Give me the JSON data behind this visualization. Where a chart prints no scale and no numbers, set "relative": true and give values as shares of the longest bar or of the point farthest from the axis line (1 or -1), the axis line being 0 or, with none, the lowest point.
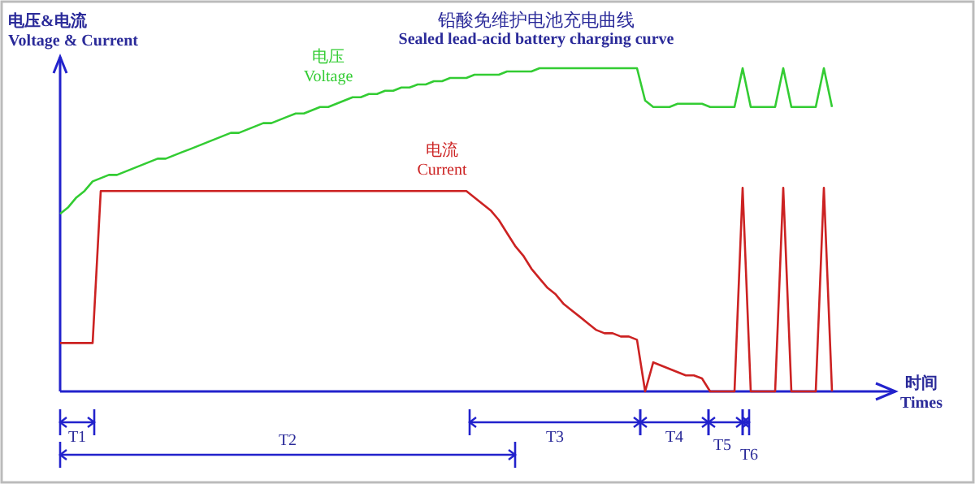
{
  "chart_data": {
    "type": "line",
    "relative": true,
    "title": "铅酸免维护电池充电曲线",
    "subtitle": "Sealed lead-acid battery charging curve",
    "ylabel": "电压&电流\nVoltage & Current",
    "xlabel": "时间\nTimes",
    "categories": [
      null,
      null,
      null,
      null,
      null,
      null,
      null,
      null,
      null,
      null,
      null,
      null,
      null,
      null,
      null,
      null,
      null,
      null,
      null,
      null,
      null,
      null,
      null,
      null,
      null,
      null,
      null,
      null,
      null,
      null,
      null,
      null,
      null,
      null,
      null,
      null,
      null,
      null,
      null,
      null,
      null,
      null,
      null,
      null,
      null,
      null,
      null,
      null,
      null,
      null,
      null,
      null,
      null,
      null,
      null,
      null,
      null,
      null,
      null,
      null,
      null,
      null,
      null,
      null,
      null,
      null,
      null,
      null,
      null,
      null,
      null,
      null,
      null,
      null,
      null,
      null,
      null,
      null,
      null,
      null,
      null,
      null,
      null,
      null,
      null,
      null,
      null,
      null,
      null,
      null,
      null,
      null,
      null,
      null,
      null,
      null
    ],
    "series": [
      {
        "name": "电压\nVoltage",
        "color": "#33cc33",
        "values": [
          0.55,
          0.57,
          0.6,
          0.62,
          0.65,
          0.66,
          0.67,
          0.67,
          0.68,
          0.69,
          0.7,
          0.71,
          0.72,
          0.72,
          0.73,
          0.74,
          0.75,
          0.76,
          0.77,
          0.78,
          0.79,
          0.8,
          0.8,
          0.81,
          0.82,
          0.83,
          0.83,
          0.84,
          0.85,
          0.86,
          0.86,
          0.87,
          0.88,
          0.88,
          0.89,
          0.9,
          0.91,
          0.91,
          0.92,
          0.92,
          0.93,
          0.93,
          0.94,
          0.94,
          0.95,
          0.95,
          0.96,
          0.96,
          0.97,
          0.97,
          0.97,
          0.98,
          0.98,
          0.98,
          0.98,
          0.99,
          0.99,
          0.99,
          0.99,
          1,
          1,
          1,
          1,
          1,
          1,
          1,
          1,
          1,
          1,
          1,
          1,
          1,
          0.9,
          0.88,
          0.88,
          0.88,
          0.89,
          0.89,
          0.89,
          0.89,
          0.88,
          0.88,
          0.88,
          0.88,
          1,
          0.88,
          0.88,
          0.88,
          0.88,
          1,
          0.88,
          0.88,
          0.88,
          0.88,
          1,
          0.88
        ]
      },
      {
        "name": "电流\nCurrent",
        "color": "#cc2222",
        "values": [
          0.15,
          0.15,
          0.15,
          0.15,
          0.15,
          0.62,
          0.62,
          0.62,
          0.62,
          0.62,
          0.62,
          0.62,
          0.62,
          0.62,
          0.62,
          0.62,
          0.62,
          0.62,
          0.62,
          0.62,
          0.62,
          0.62,
          0.62,
          0.62,
          0.62,
          0.62,
          0.62,
          0.62,
          0.62,
          0.62,
          0.62,
          0.62,
          0.62,
          0.62,
          0.62,
          0.62,
          0.62,
          0.62,
          0.62,
          0.62,
          0.62,
          0.62,
          0.62,
          0.62,
          0.62,
          0.62,
          0.62,
          0.62,
          0.62,
          0.62,
          0.62,
          0.6,
          0.58,
          0.56,
          0.53,
          0.49,
          0.45,
          0.42,
          0.38,
          0.35,
          0.32,
          0.3,
          0.27,
          0.25,
          0.23,
          0.21,
          0.19,
          0.18,
          0.18,
          0.17,
          0.17,
          0.16,
          0,
          0.09,
          0.08,
          0.07,
          0.06,
          0.05,
          0.05,
          0.04,
          0,
          0,
          0,
          0,
          0.63,
          0,
          0,
          0,
          0,
          0.63,
          0,
          0,
          0,
          0,
          0.63,
          0
        ]
      }
    ],
    "annotations": [
      "T1",
      "T2",
      "T3",
      "T4",
      "T5",
      "T6"
    ]
  }
}
